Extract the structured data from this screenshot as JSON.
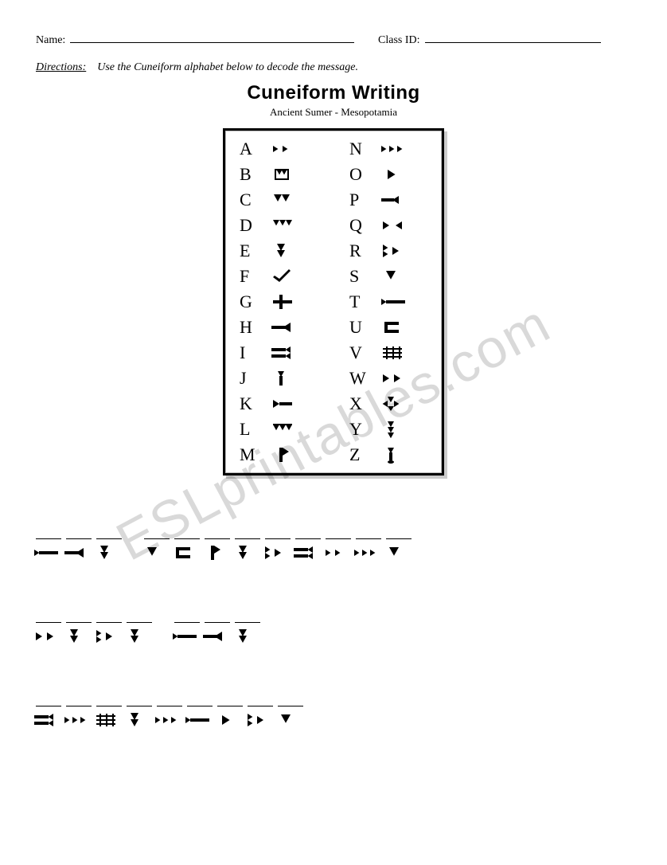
{
  "header": {
    "name_label": "Name:",
    "class_label": "Class ID:"
  },
  "directions": {
    "label": "Directions:",
    "text": "Use the Cuneiform alphabet below to decode the message."
  },
  "title": "Cuneiform Writing",
  "subtitle": "Ancient Sumer - Mesopotamia",
  "watermark": "ESLprintables.com",
  "alphabet": {
    "left": [
      "A",
      "B",
      "C",
      "D",
      "E",
      "F",
      "G",
      "H",
      "I",
      "J",
      "K",
      "L",
      "M"
    ],
    "right": [
      "N",
      "O",
      "P",
      "Q",
      "R",
      "S",
      "T",
      "U",
      "V",
      "W",
      "X",
      "Y",
      "Z"
    ]
  },
  "glyph_map": {
    "A": "dbl-tri-r",
    "B": "plaque",
    "C": "two-wedge-down",
    "D": "three-wedge-down",
    "E": "stack-tri-down",
    "F": "check",
    "G": "tee",
    "H": "arrow-left",
    "I": "arrow-left-dbl",
    "J": "spear-down",
    "K": "flag-r",
    "L": "three-wedge-down-row",
    "M": "axe",
    "N": "three-tri-r",
    "O": "one-tri-r",
    "P": "flag-l",
    "Q": "bowtie",
    "R": "dbl-tri-r-stack",
    "S": "one-wedge-down",
    "T": "flag-r-long",
    "U": "bracket",
    "V": "grid",
    "W": "two-tri-r",
    "X": "plus",
    "Y": "three-wedge-down-stack",
    "Z": "spear-down-dot"
  },
  "message": [
    [
      [
        "T",
        "H",
        "E"
      ],
      [
        "S",
        "U",
        "M",
        "E",
        "R",
        "I",
        "A",
        "N",
        "S"
      ]
    ],
    [
      [
        "W",
        "E",
        "R",
        "E"
      ],
      [
        "T",
        "H",
        "E"
      ]
    ],
    [
      [
        "I",
        "N",
        "V",
        "E",
        "N",
        "T",
        "O",
        "R",
        "S"
      ]
    ]
  ],
  "colors": {
    "ink": "#000000",
    "bg": "#ffffff",
    "watermark": "rgba(0,0,0,0.15)"
  }
}
